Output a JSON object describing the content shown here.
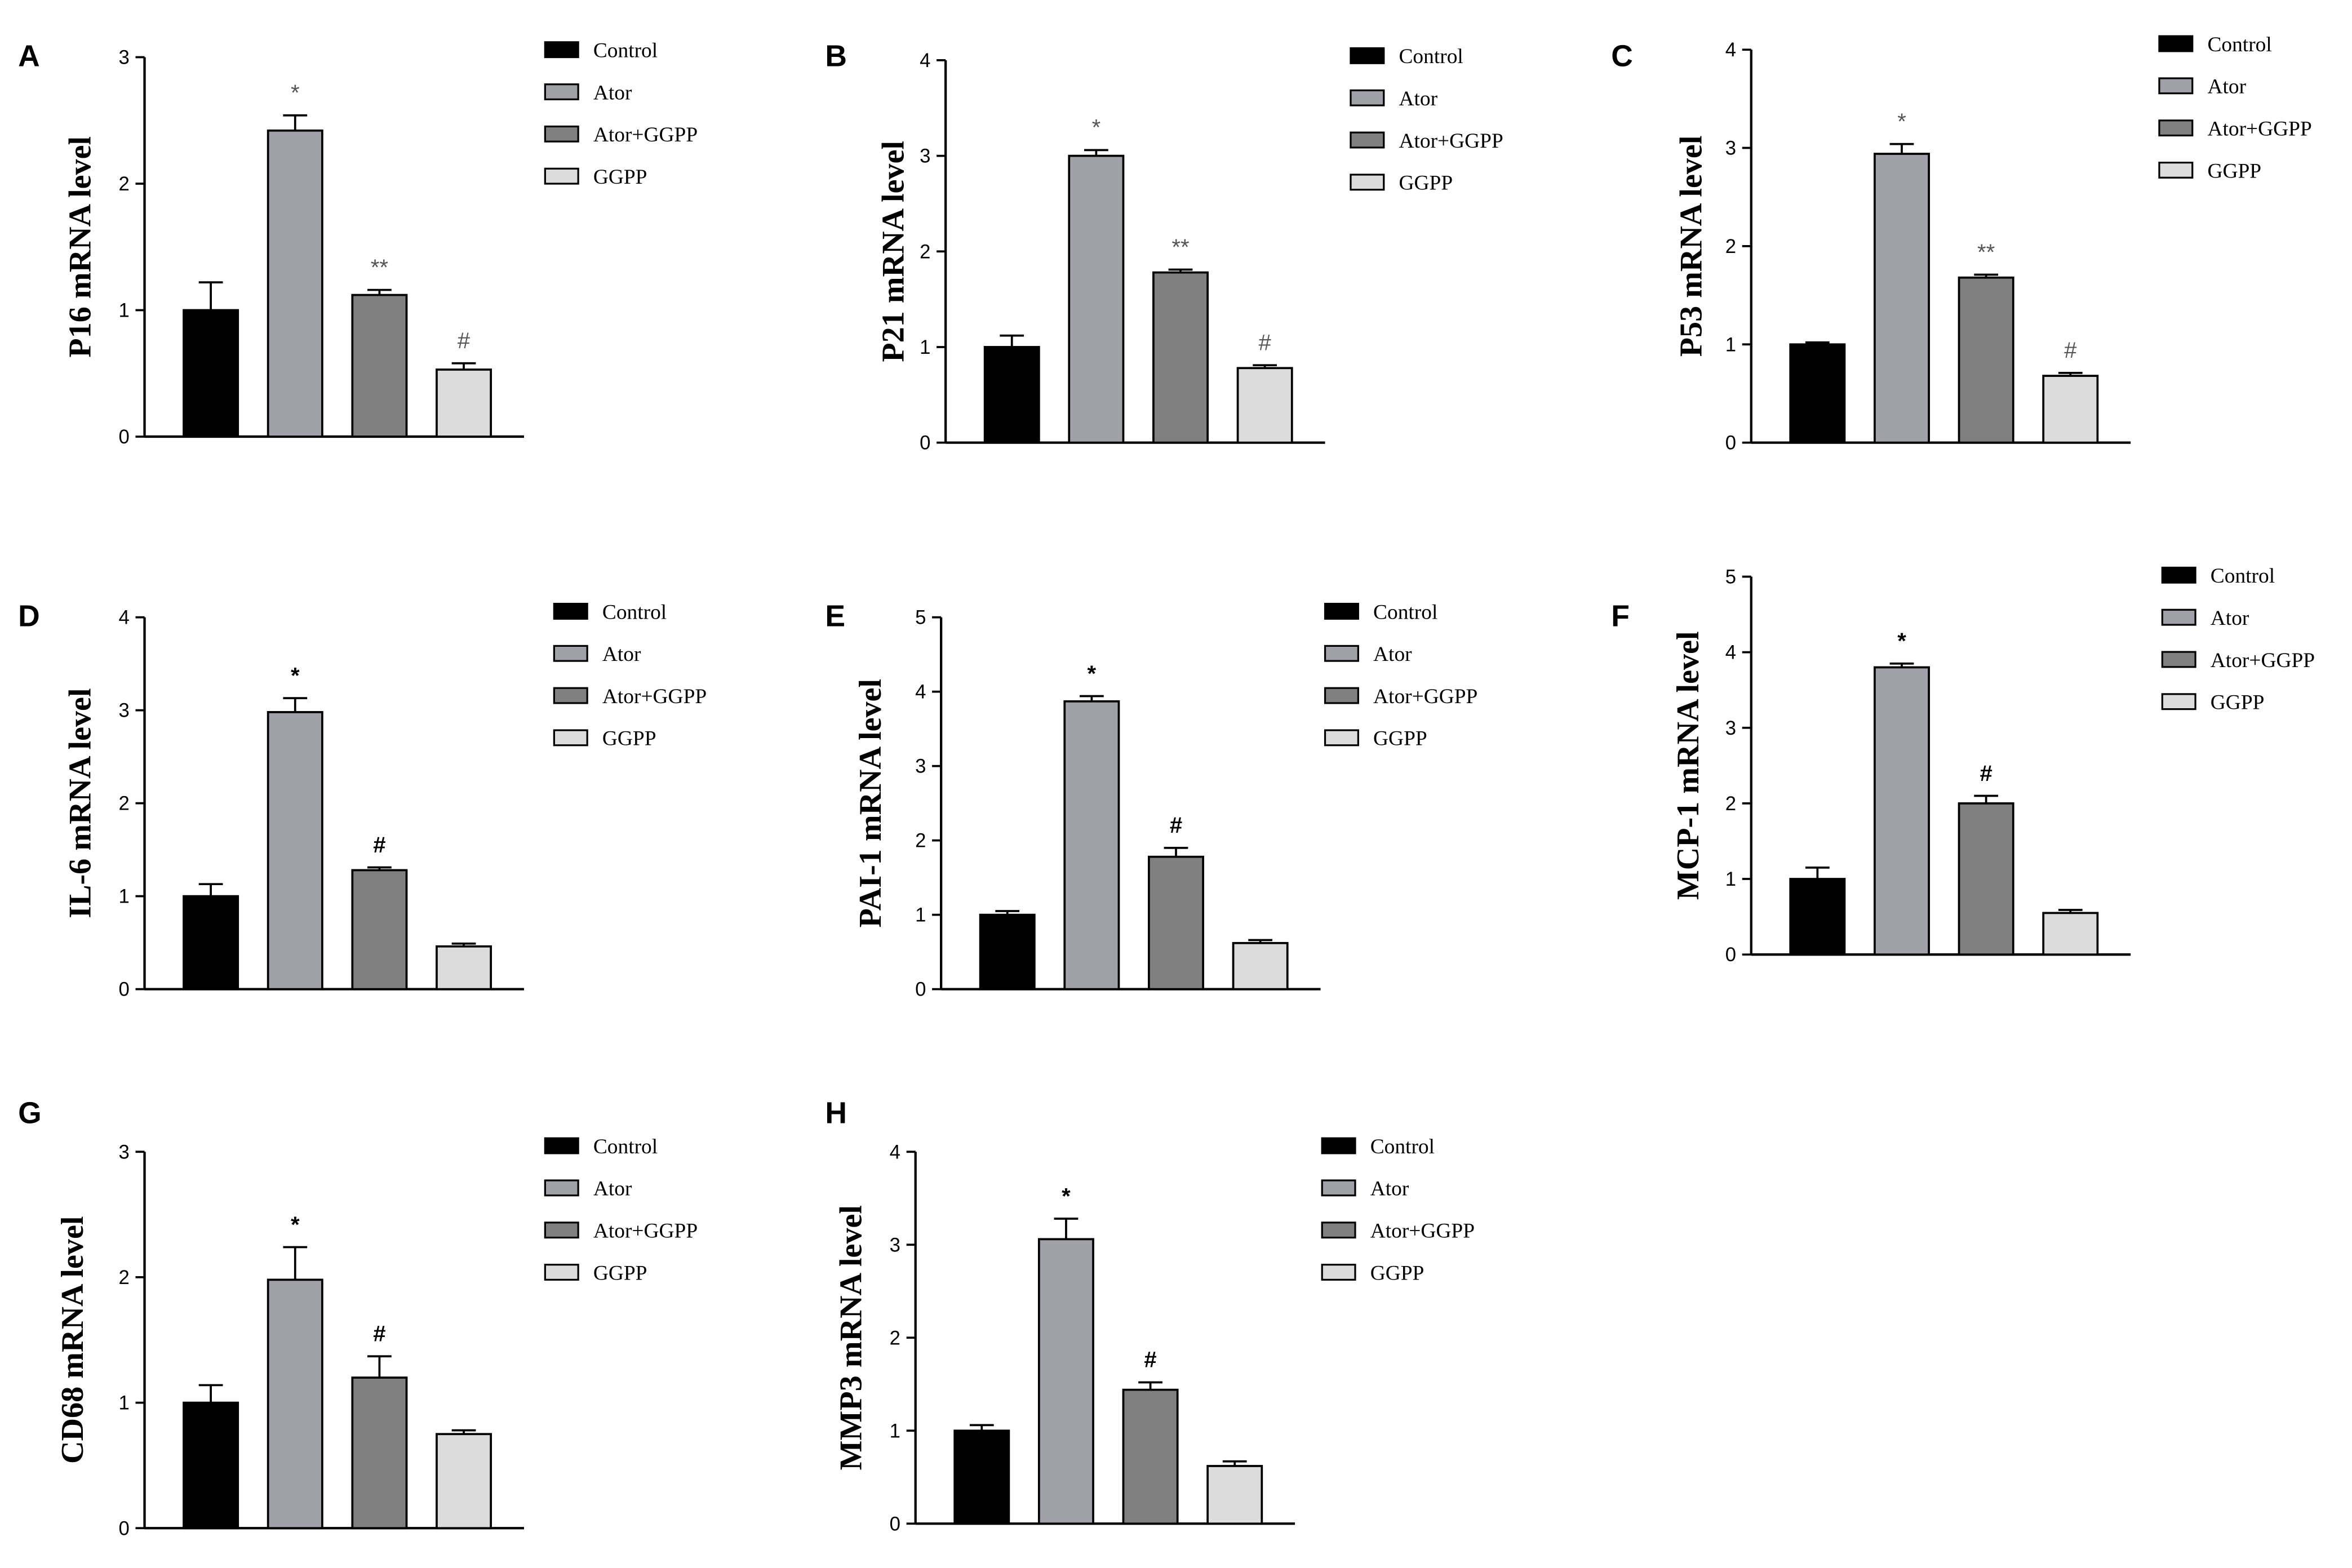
{
  "colors": {
    "Control": "#000000",
    "Ator": "#a0a0a8",
    "Ator+GGPP": "#808080",
    "GGPP": "#dcdcdc",
    "axis": "#000000"
  },
  "chart_data": [
    {
      "panel": "A",
      "type": "bar",
      "ylabel": "P16 mRNA level",
      "ylim": [
        0,
        3
      ],
      "yticks": [
        0,
        1,
        2,
        3
      ],
      "legend": [
        "Control",
        "Ator",
        "Ator+GGPP",
        "GGPP"
      ],
      "categories": [
        "Control",
        "Ator",
        "Ator+GGPP",
        "GGPP"
      ],
      "values": [
        1.0,
        2.42,
        1.12,
        0.53
      ],
      "errors": [
        0.22,
        0.12,
        0.04,
        0.05
      ],
      "annotations": [
        "",
        "*",
        "**",
        "#"
      ]
    },
    {
      "panel": "B",
      "type": "bar",
      "ylabel": "P21 mRNA level",
      "ylim": [
        0,
        4
      ],
      "yticks": [
        0,
        1,
        2,
        3,
        4
      ],
      "legend": [
        "Control",
        "Ator",
        "Ator+GGPP",
        "GGPP"
      ],
      "categories": [
        "Control",
        "Ator",
        "Ator+GGPP",
        "GGPP"
      ],
      "values": [
        1.0,
        3.0,
        1.78,
        0.78
      ],
      "errors": [
        0.12,
        0.06,
        0.03,
        0.03
      ],
      "annotations": [
        "",
        "*",
        "**",
        "#"
      ]
    },
    {
      "panel": "C",
      "type": "bar",
      "ylabel": "P53 mRNA level",
      "ylim": [
        0,
        4
      ],
      "yticks": [
        0,
        1,
        2,
        3,
        4
      ],
      "legend": [
        "Control",
        "Ator",
        "Ator+GGPP",
        "GGPP"
      ],
      "categories": [
        "Control",
        "Ator",
        "Ator+GGPP",
        "GGPP"
      ],
      "values": [
        1.0,
        2.94,
        1.68,
        0.68
      ],
      "errors": [
        0.02,
        0.1,
        0.03,
        0.03
      ],
      "annotations": [
        "",
        "*",
        "**",
        "#"
      ]
    },
    {
      "panel": "D",
      "type": "bar",
      "ylabel": "IL-6 mRNA level",
      "ylim": [
        0,
        4
      ],
      "yticks": [
        0,
        1,
        2,
        3,
        4
      ],
      "legend": [
        "Control",
        "Ator",
        "Ator+GGPP",
        "GGPP"
      ],
      "categories": [
        "Control",
        "Ator",
        "Ator+GGPP",
        "GGPP"
      ],
      "values": [
        1.0,
        2.98,
        1.28,
        0.46
      ],
      "errors": [
        0.13,
        0.15,
        0.03,
        0.03
      ],
      "annotations": [
        "",
        "*",
        "#",
        ""
      ]
    },
    {
      "panel": "E",
      "type": "bar",
      "ylabel": "PAI-1 mRNA level",
      "ylim": [
        0,
        5
      ],
      "yticks": [
        0,
        1,
        2,
        3,
        4,
        5
      ],
      "legend": [
        "Control",
        "Ator",
        "Ator+GGPP",
        "GGPP"
      ],
      "categories": [
        "Control",
        "Ator",
        "Ator+GGPP",
        "GGPP"
      ],
      "values": [
        1.0,
        3.87,
        1.78,
        0.62
      ],
      "errors": [
        0.05,
        0.07,
        0.12,
        0.04
      ],
      "annotations": [
        "",
        "*",
        "#",
        ""
      ]
    },
    {
      "panel": "F",
      "type": "bar",
      "ylabel": "MCP-1 mRNA level",
      "ylim": [
        0,
        5
      ],
      "yticks": [
        0,
        1,
        2,
        3,
        4,
        5
      ],
      "legend": [
        "Control",
        "Ator",
        "Ator+GGPP",
        "GGPP"
      ],
      "categories": [
        "Control",
        "Ator",
        "Ator+GGPP",
        "GGPP"
      ],
      "values": [
        1.0,
        3.8,
        2.0,
        0.55
      ],
      "errors": [
        0.15,
        0.05,
        0.1,
        0.04
      ],
      "annotations": [
        "",
        "*",
        "#",
        ""
      ]
    },
    {
      "panel": "G",
      "type": "bar",
      "ylabel": "CD68 mRNA level",
      "ylim": [
        0,
        3
      ],
      "yticks": [
        0,
        1,
        2,
        3
      ],
      "legend": [
        "Control",
        "Ator",
        "Ator+GGPP",
        "GGPP"
      ],
      "categories": [
        "Control",
        "Ator",
        "Ator+GGPP",
        "GGPP"
      ],
      "values": [
        1.0,
        1.98,
        1.2,
        0.75
      ],
      "errors": [
        0.14,
        0.26,
        0.17,
        0.03
      ],
      "annotations": [
        "",
        "*",
        "#",
        ""
      ]
    },
    {
      "panel": "H",
      "type": "bar",
      "ylabel": "MMP3 mRNA level",
      "ylim": [
        0,
        4
      ],
      "yticks": [
        0,
        1,
        2,
        3,
        4
      ],
      "legend": [
        "Control",
        "Ator",
        "Ator+GGPP",
        "GGPP"
      ],
      "categories": [
        "Control",
        "Ator",
        "Ator+GGPP",
        "GGPP"
      ],
      "values": [
        1.0,
        3.06,
        1.44,
        0.62
      ],
      "errors": [
        0.06,
        0.22,
        0.08,
        0.05
      ],
      "annotations": [
        "",
        "*",
        "#",
        ""
      ]
    }
  ]
}
